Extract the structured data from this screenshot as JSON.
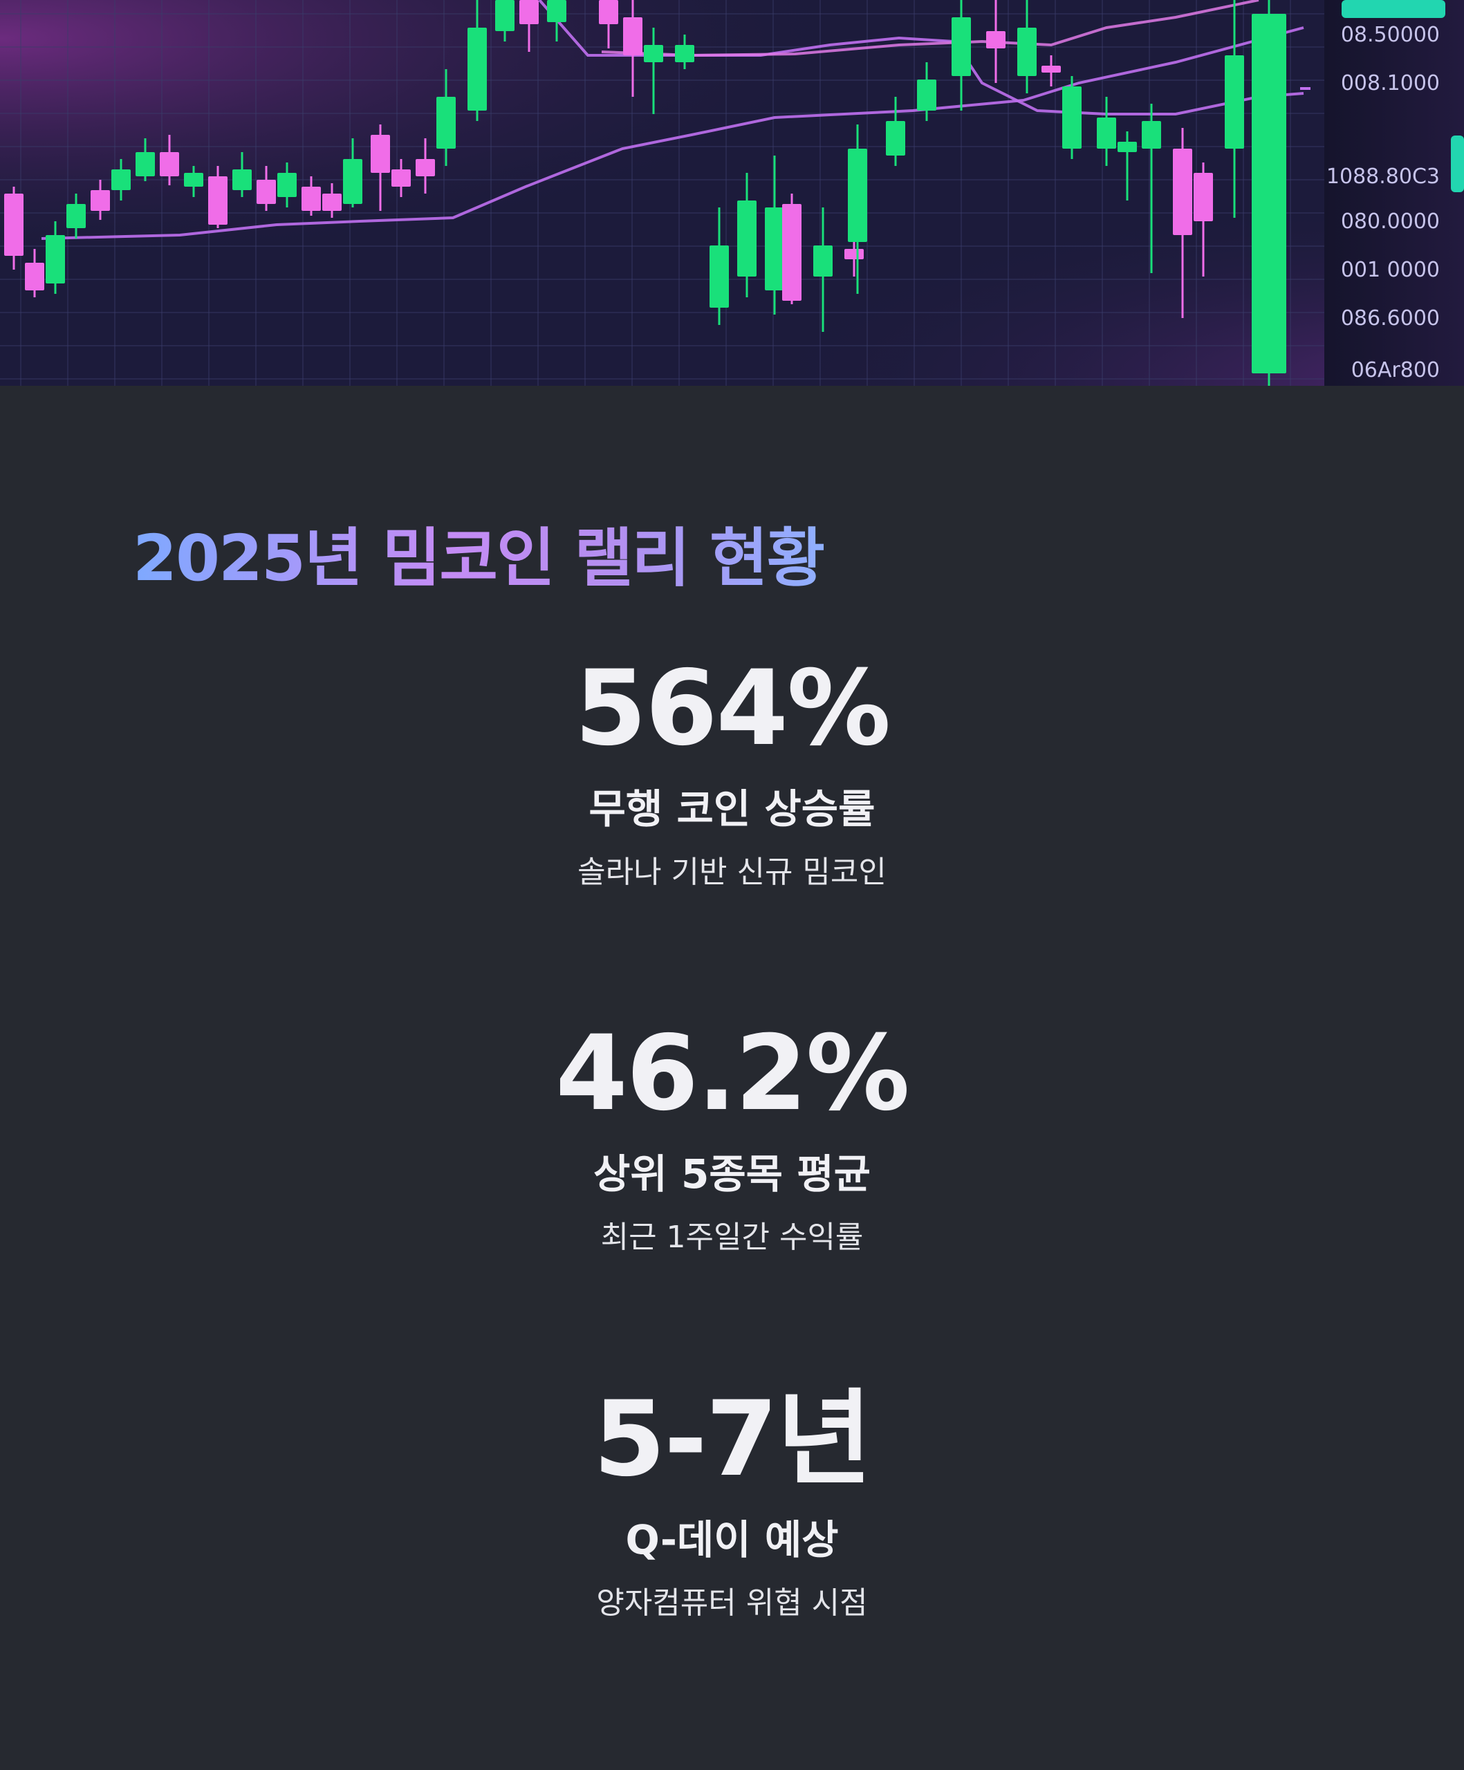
{
  "hero": {
    "price_labels": [
      "08.50000",
      "008.1000",
      "1088.80C3",
      "080.0000",
      "001 0000",
      "086.6000",
      "06Ar800"
    ],
    "colors": {
      "up": "#19e07a",
      "down": "#f06de8",
      "ma_line": "#c070f0",
      "background": "#1b1a3a",
      "grid": "#3a3d6a"
    }
  },
  "title": "2025년 밈코인 랠리 현황",
  "stats": [
    {
      "value": "564%",
      "label": "무행 코인 상승률",
      "desc": "솔라나 기반 신규 밈코인"
    },
    {
      "value": "46.2%",
      "label": "상위 5종목 평균",
      "desc": "최근 1주일간 수익률"
    },
    {
      "value": "5-7년",
      "label": "Q-데이 예상",
      "desc": "양자컴퓨터 위협 시점"
    }
  ]
}
